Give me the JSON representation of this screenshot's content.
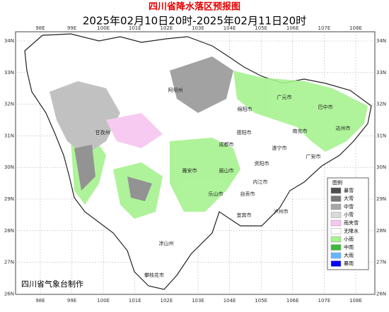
{
  "header": {
    "title": "四川省降水落区预报图",
    "subtitle": "2025年02月10日20时-2025年02月11日20时"
  },
  "map": {
    "lat_labels": [
      "34N",
      "33N",
      "32N",
      "31N",
      "30N",
      "29N",
      "28N",
      "27N",
      "26N"
    ],
    "lon_labels": [
      "98E",
      "99E",
      "100E",
      "101E",
      "102E",
      "103E",
      "104E",
      "105E",
      "106E",
      "107E",
      "108E"
    ],
    "cities": [
      "阿坝州",
      "甘孜州",
      "绵阳市",
      "广元市",
      "巴中市",
      "达州市",
      "南充市",
      "德阳市",
      "成都市",
      "遂宁市",
      "广安市",
      "雅安市",
      "眉山市",
      "资阳市",
      "乐山市",
      "内江市",
      "自贡市",
      "宜宾市",
      "泸州市",
      "凉山州",
      "攀枝花市"
    ]
  },
  "legend": {
    "title": "图例",
    "items": [
      {
        "label": "暴雪",
        "color": "#4d4d4d"
      },
      {
        "label": "大雪",
        "color": "#777777"
      },
      {
        "label": "中雪",
        "color": "#a6a6a6"
      },
      {
        "label": "小雪",
        "color": "#d9d9d9"
      },
      {
        "label": "雨夹雪",
        "color": "#f7c6f0"
      },
      {
        "label": "无降水",
        "color": "#ffffff"
      },
      {
        "label": "小雨",
        "color": "#a6f28f"
      },
      {
        "label": "中雨",
        "color": "#3dba3d"
      },
      {
        "label": "大雨",
        "color": "#61b8ff"
      },
      {
        "label": "暴雨",
        "color": "#0000fe"
      }
    ]
  },
  "footer": "四川省气象台制作"
}
